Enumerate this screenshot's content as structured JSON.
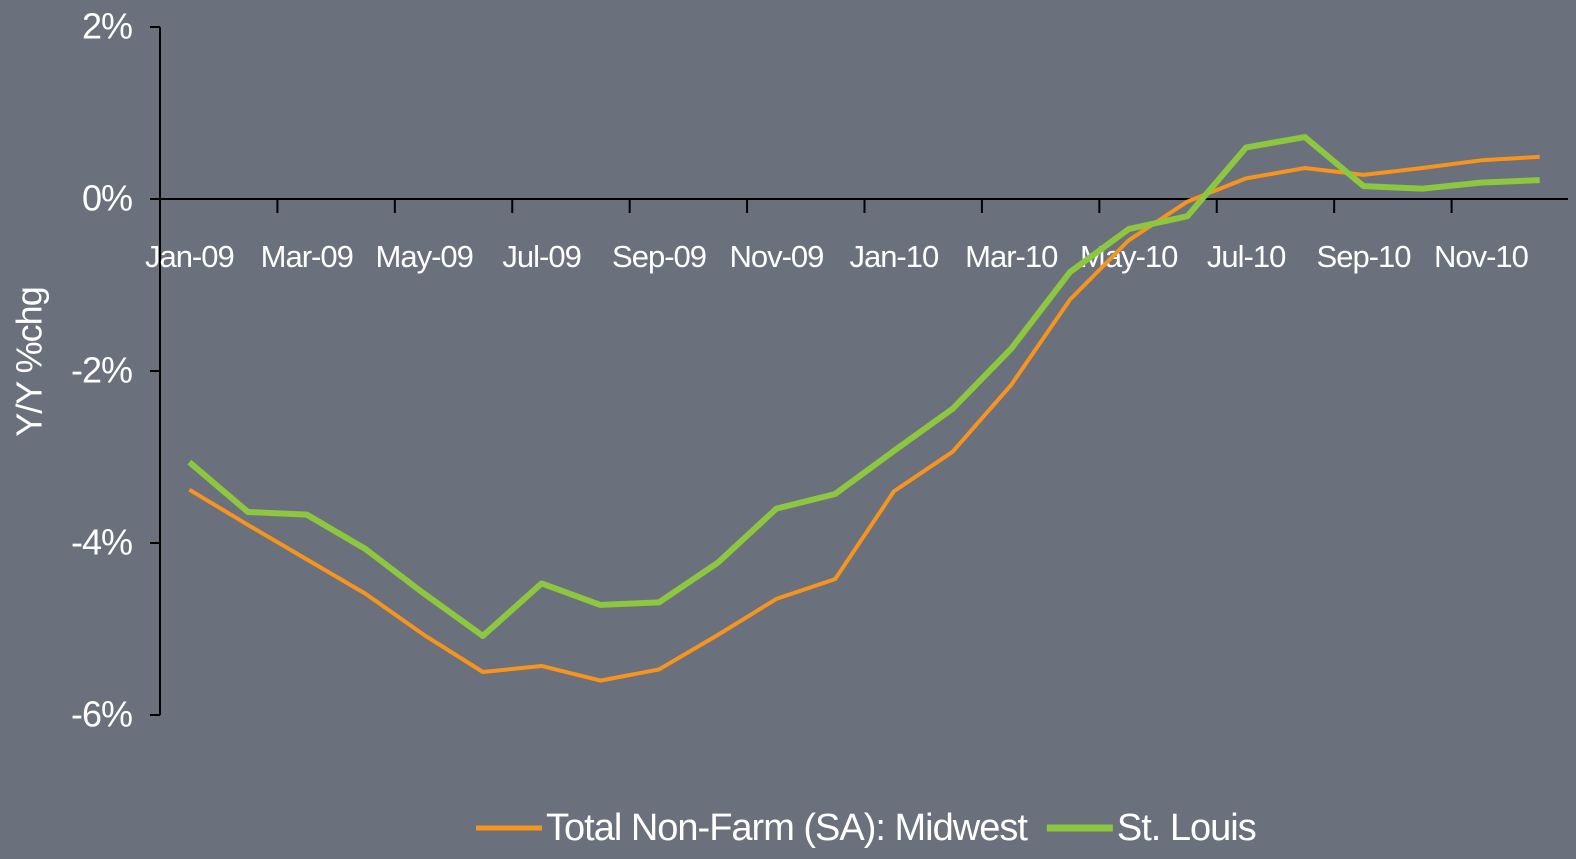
{
  "chart_data": {
    "type": "line",
    "y_label": "Y/Y %chg",
    "categories": [
      "Jan-09",
      null,
      "Mar-09",
      null,
      "May-09",
      null,
      "Jul-09",
      null,
      "Sep-09",
      null,
      "Nov-09",
      null,
      "Jan-10",
      null,
      "Mar-10",
      null,
      "May-10",
      null,
      "Jul-10",
      null,
      "Sep-10",
      null,
      "Nov-10",
      null
    ],
    "series": [
      {
        "name": "Total Non-Farm (SA): Midwest",
        "color": "#f7941d",
        "values": [
          -3.38,
          -3.79,
          -4.19,
          -4.59,
          -5.07,
          -5.5,
          -5.43,
          -5.6,
          -5.47,
          -5.07,
          -4.65,
          -4.42,
          -3.4,
          -2.94,
          -2.16,
          -1.17,
          -0.48,
          -0.03,
          0.24,
          0.36,
          0.28,
          0.36,
          0.45,
          0.49
        ]
      },
      {
        "name": "St. Louis",
        "color": "#8dc63f",
        "values": [
          -3.06,
          -3.64,
          -3.67,
          -4.07,
          -4.59,
          -5.08,
          -4.47,
          -4.72,
          -4.69,
          -4.23,
          -3.6,
          -3.43,
          -2.93,
          -2.44,
          -1.74,
          -0.85,
          -0.35,
          -0.2,
          0.6,
          0.72,
          0.15,
          0.12,
          0.19,
          0.22
        ]
      }
    ],
    "ylim": [
      -6,
      2
    ],
    "yticks": [
      {
        "value": 2,
        "label": "2%"
      },
      {
        "value": 0,
        "label": "0%"
      },
      {
        "value": -2,
        "label": "-2%"
      },
      {
        "value": -4,
        "label": "-4%"
      },
      {
        "value": -6,
        "label": "-6%"
      }
    ],
    "legend": "bottom"
  }
}
